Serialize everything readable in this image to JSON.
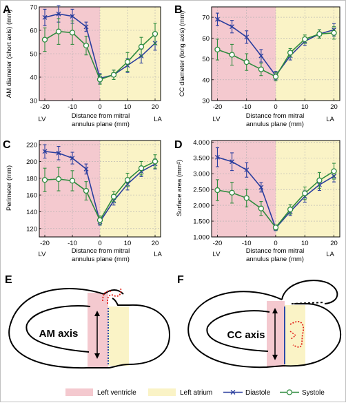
{
  "colors": {
    "lv_shade": "#f4c9cf",
    "la_shade": "#faf3c6",
    "diastole": "#2a3e9e",
    "systole": "#2e8b3e",
    "red_dotted": "#e2231a",
    "blue_line": "#2a4aa8"
  },
  "xaxis": {
    "label_line1": "Distance from mitral",
    "label_line2": "annulus plane (mm)",
    "left_tag": "LV",
    "right_tag": "LA",
    "ticks": [
      -20,
      -10,
      0,
      10,
      20
    ]
  },
  "legend": {
    "lv": "Left ventricle",
    "la": "Left atrium",
    "diastole": "Diastole",
    "systole": "Systole"
  },
  "chart_data": [
    {
      "panel": "A",
      "type": "line",
      "ylabel": "AM diameter (short axis) (mm)",
      "xlim": [
        -22,
        22
      ],
      "ylim": [
        30,
        70
      ],
      "yticks": [
        30,
        40,
        50,
        60,
        70
      ],
      "ytick_labels": [
        "30",
        "40",
        "50",
        "60",
        "70"
      ],
      "x": [
        -20,
        -15,
        -10,
        -5,
        0,
        5,
        10,
        15,
        20
      ],
      "series": [
        {
          "name": "Diastole",
          "values": [
            65.5,
            67,
            66,
            61.5,
            39.5,
            41,
            45,
            49,
            54.5
          ],
          "err": [
            3.5,
            3.5,
            3,
            2,
            2,
            2,
            3,
            3,
            3
          ]
        },
        {
          "name": "Systole",
          "values": [
            56,
            59.5,
            59,
            53.5,
            39,
            41,
            46.5,
            53,
            58.5
          ],
          "err": [
            5,
            5.5,
            5,
            4,
            2,
            2,
            4,
            4,
            4.5
          ]
        }
      ]
    },
    {
      "panel": "B",
      "type": "line",
      "ylabel": "CC diameter (long axis) (mm)",
      "xlim": [
        -22,
        22
      ],
      "ylim": [
        30,
        75
      ],
      "yticks": [
        30,
        40,
        50,
        60,
        70
      ],
      "ytick_labels": [
        "30",
        "40",
        "50",
        "60",
        "70"
      ],
      "x": [
        -20,
        -15,
        -10,
        -5,
        0,
        5,
        10,
        15,
        20
      ],
      "series": [
        {
          "name": "Diastole",
          "values": [
            69,
            65.5,
            60.5,
            51.5,
            42,
            51.5,
            58.5,
            62,
            64
          ],
          "err": [
            3,
            3,
            3,
            3,
            2,
            2,
            2,
            2,
            3
          ]
        },
        {
          "name": "Systole",
          "values": [
            54.5,
            52,
            48.5,
            45,
            41.5,
            53,
            59.5,
            62,
            62.5
          ],
          "err": [
            5,
            5,
            4,
            3,
            2,
            2,
            2,
            2,
            3
          ]
        }
      ]
    },
    {
      "panel": "C",
      "type": "line",
      "ylabel": "Perimeter (mm)",
      "xlim": [
        -22,
        22
      ],
      "ylim": [
        110,
        225
      ],
      "yticks": [
        120,
        140,
        160,
        180,
        200,
        220
      ],
      "ytick_labels": [
        "120",
        "140",
        "160",
        "180",
        "200",
        "220"
      ],
      "x": [
        -20,
        -15,
        -10,
        -5,
        0,
        5,
        10,
        15,
        20
      ],
      "series": [
        {
          "name": "Diastole",
          "values": [
            212,
            210,
            204,
            191,
            128,
            153,
            173,
            188,
            197
          ],
          "err": [
            8,
            8,
            7,
            6,
            4,
            5,
            7,
            6,
            6
          ]
        },
        {
          "name": "Systole",
          "values": [
            178,
            179,
            177,
            165,
            130,
            158,
            178,
            192,
            200
          ],
          "err": [
            14,
            14,
            12,
            11,
            5,
            6,
            8,
            8,
            8
          ]
        }
      ]
    },
    {
      "panel": "D",
      "type": "line",
      "ylabel": "Surface area (mm²)",
      "xlim": [
        -22,
        22
      ],
      "ylim": [
        1000,
        4050
      ],
      "yticks": [
        1000,
        1500,
        2000,
        2500,
        3000,
        3500,
        4000
      ],
      "ytick_labels": [
        "1.000",
        "1.500",
        "2.000",
        "2.500",
        "3.000",
        "3.500",
        "4.000"
      ],
      "x": [
        -20,
        -15,
        -10,
        -5,
        0,
        5,
        10,
        15,
        20
      ],
      "series": [
        {
          "name": "Diastole",
          "values": [
            3520,
            3380,
            3120,
            2570,
            1280,
            1800,
            2280,
            2650,
            2920
          ],
          "err": [
            300,
            280,
            230,
            150,
            80,
            120,
            180,
            180,
            180
          ]
        },
        {
          "name": "Systole",
          "values": [
            2480,
            2400,
            2230,
            1900,
            1300,
            1870,
            2380,
            2790,
            3080
          ],
          "err": [
            330,
            330,
            280,
            220,
            80,
            150,
            200,
            250,
            250
          ]
        }
      ]
    }
  ],
  "diagrams": {
    "E": {
      "label": "AM axis"
    },
    "F": {
      "label": "CC axis"
    }
  }
}
